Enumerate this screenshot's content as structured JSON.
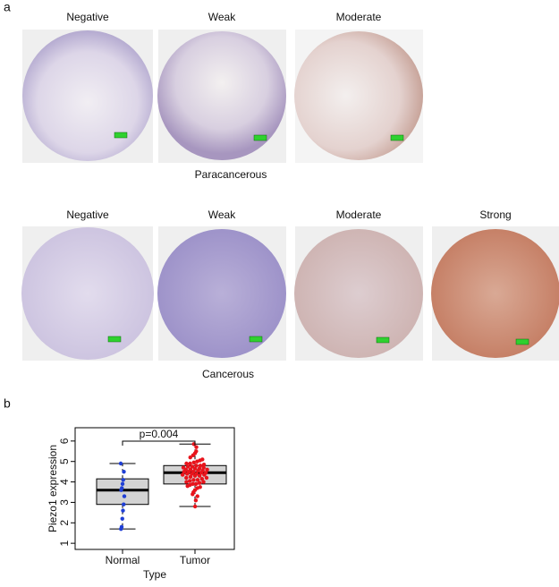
{
  "panel_a": {
    "label": "a",
    "rows": [
      {
        "labels": [
          "Negative",
          "Weak",
          "Moderate"
        ],
        "caption": "Paracancerous"
      },
      {
        "labels": [
          "Negative",
          "Weak",
          "Moderate",
          "Strong"
        ],
        "caption": "Cancerous"
      }
    ]
  },
  "chart_data": {
    "type": "box",
    "panel_label": "b",
    "xlabel": "Type",
    "ylabel": "Piezo1 expression",
    "annotation": "p=0.004",
    "ylim": [
      0.7,
      6.65
    ],
    "yticks": [
      1,
      2,
      3,
      4,
      5,
      6
    ],
    "series": [
      {
        "name": "Normal",
        "color": "#1f3fd6",
        "whisker_low": 1.7,
        "q1": 2.9,
        "median": 3.6,
        "q3": 4.15,
        "whisker_high": 4.9,
        "values": [
          4.9,
          4.5,
          4.1,
          3.9,
          3.7,
          3.6,
          3.3,
          2.9,
          2.6,
          2.2,
          1.8,
          1.7
        ]
      },
      {
        "name": "Tumor",
        "color": "#e8141c",
        "whisker_low": 2.8,
        "q1": 3.9,
        "median": 4.45,
        "q3": 4.8,
        "whisker_high": 5.85,
        "values": [
          5.85,
          5.7,
          5.5,
          5.4,
          5.3,
          5.2,
          5.1,
          5.05,
          5.0,
          4.95,
          4.9,
          4.9,
          4.85,
          4.8,
          4.8,
          4.75,
          4.75,
          4.7,
          4.7,
          4.65,
          4.65,
          4.6,
          4.6,
          4.6,
          4.55,
          4.55,
          4.5,
          4.5,
          4.5,
          4.45,
          4.45,
          4.4,
          4.4,
          4.4,
          4.35,
          4.35,
          4.3,
          4.3,
          4.25,
          4.2,
          4.2,
          4.15,
          4.1,
          4.1,
          4.05,
          4.0,
          4.0,
          3.95,
          3.9,
          3.9,
          3.85,
          3.8,
          3.75,
          3.7,
          3.6,
          3.5,
          3.4,
          3.3,
          3.1,
          2.8
        ]
      }
    ]
  }
}
